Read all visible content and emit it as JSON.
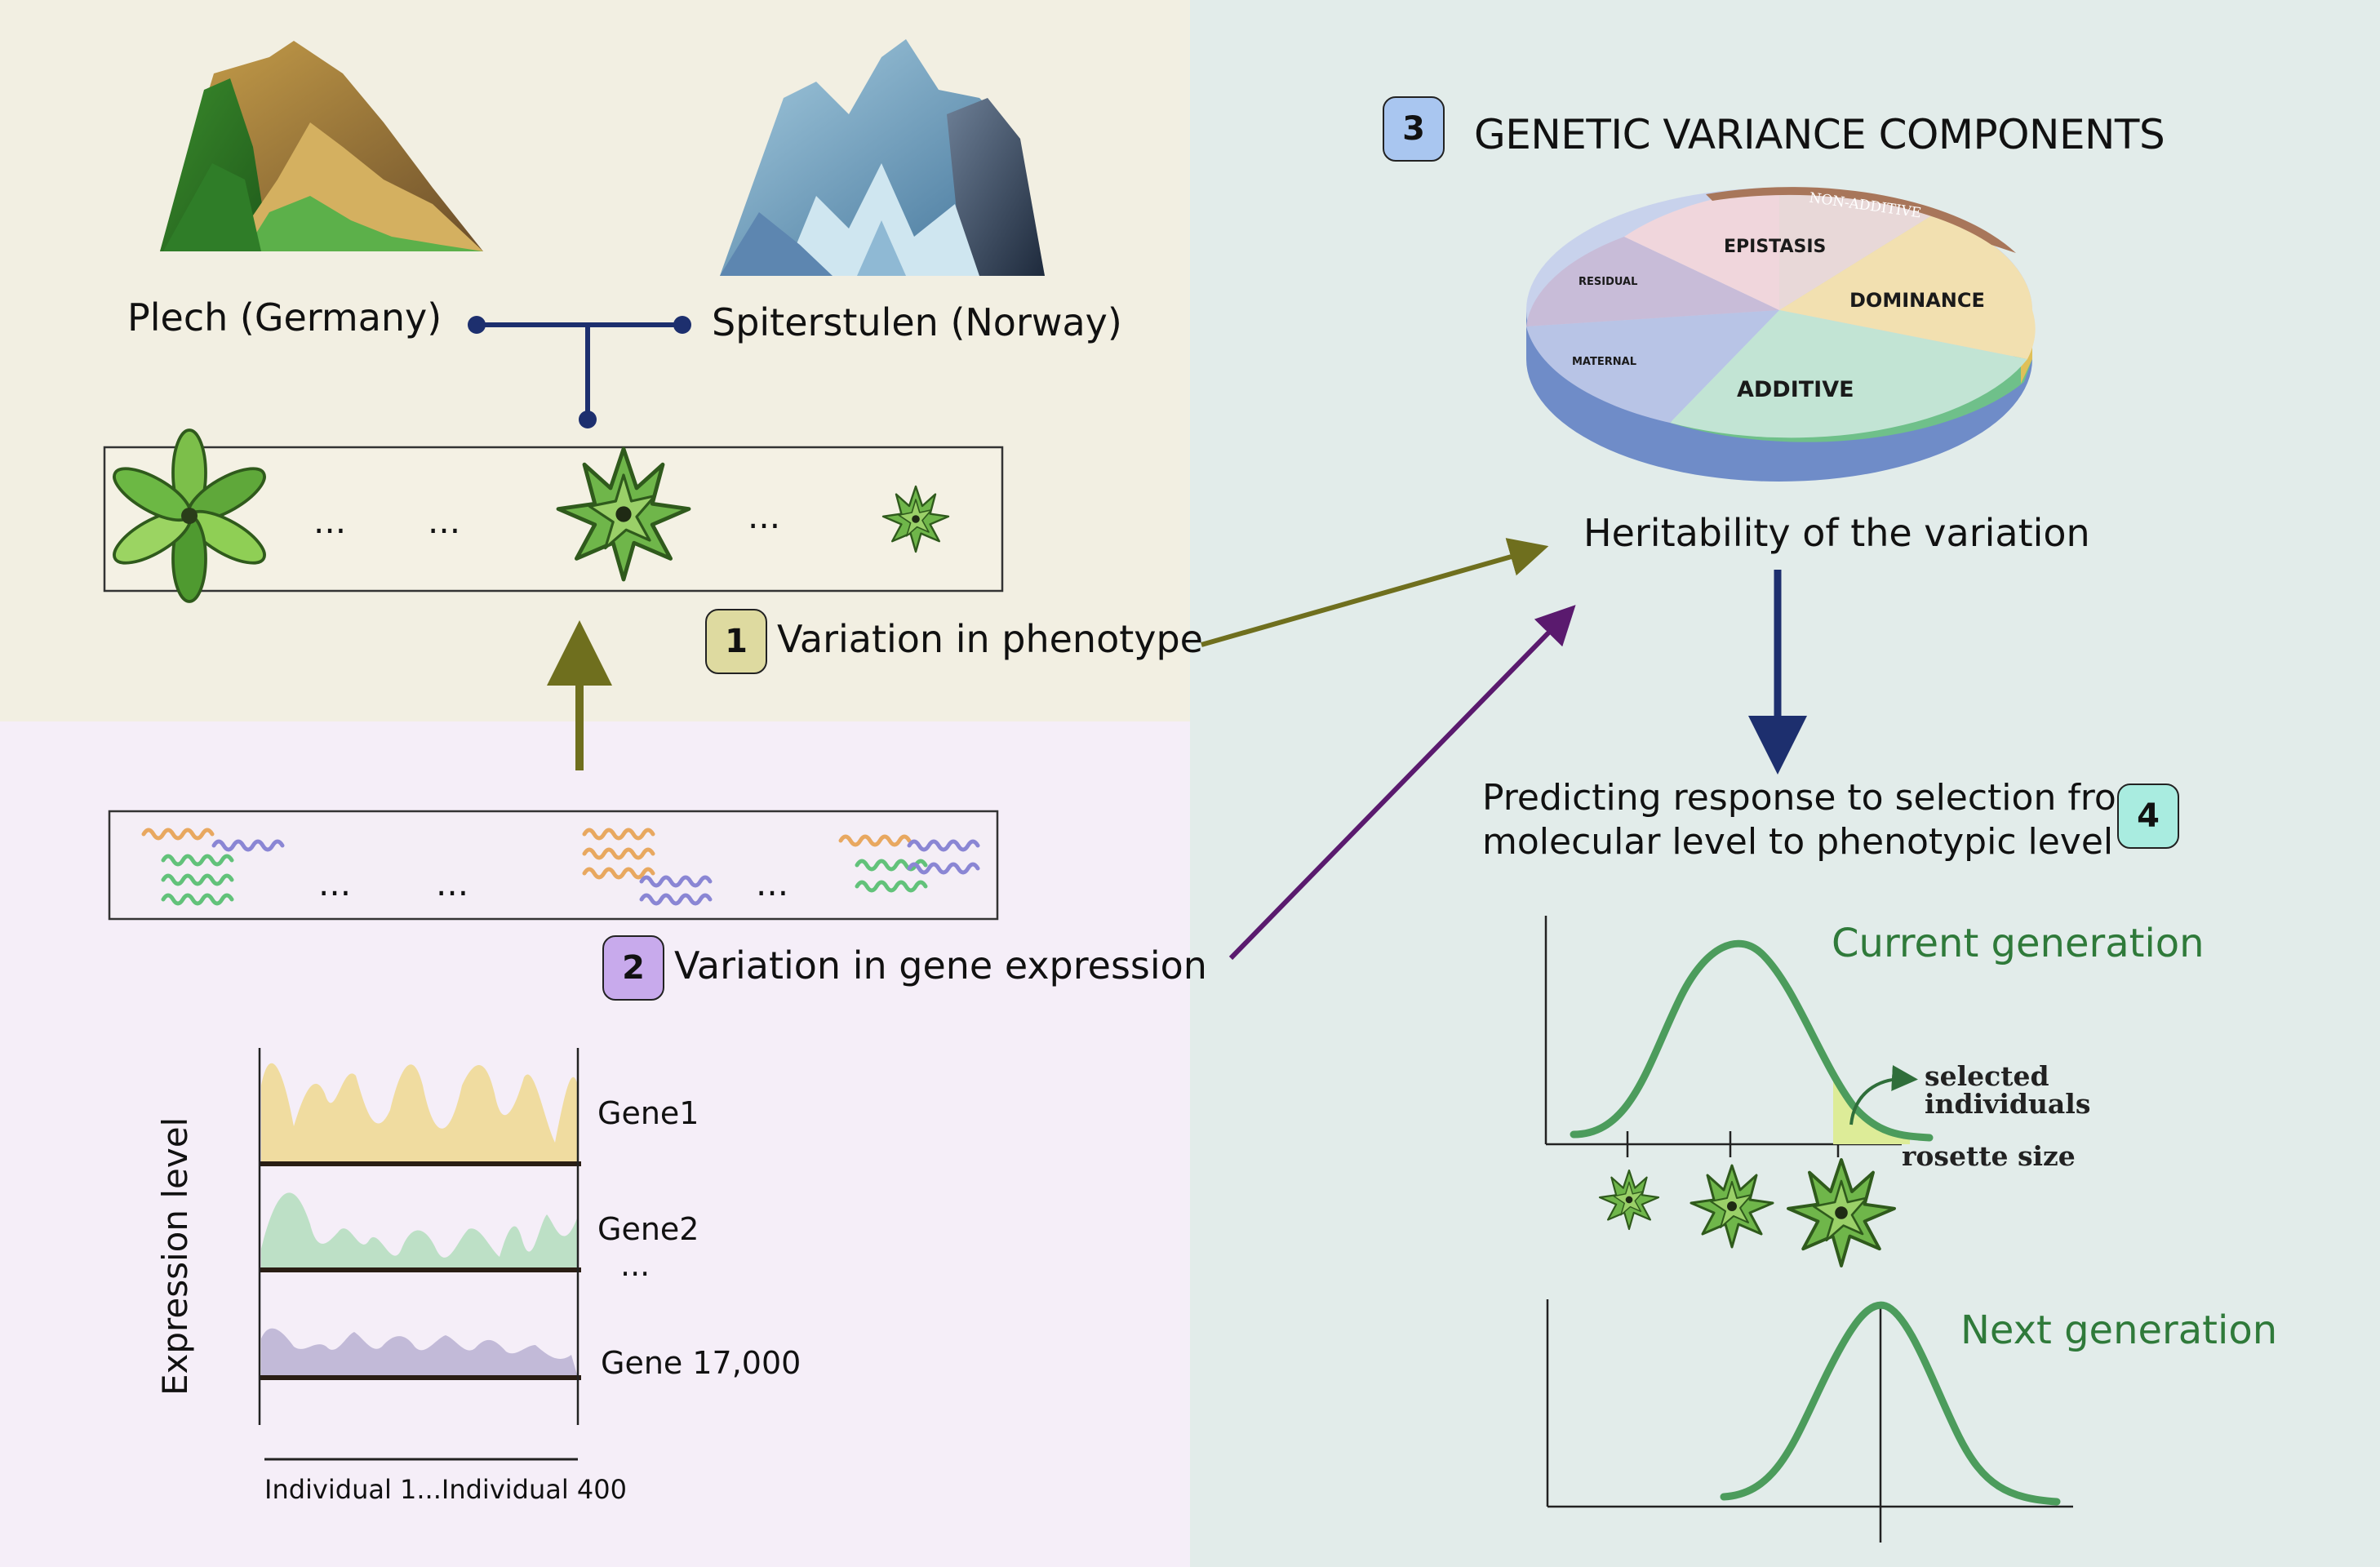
{
  "populations": {
    "left": "Plech (Germany)",
    "right": "Spiterstulen (Norway)"
  },
  "steps": {
    "s1": {
      "number": "1",
      "label": "Variation in phenotype"
    },
    "s2": {
      "number": "2",
      "label": "Variation in gene expression"
    },
    "s3": {
      "number": "3",
      "label": "GENETIC VARIANCE COMPONENTS"
    },
    "s4": {
      "number": "4",
      "label_line1": "Predicting response to selection from",
      "label_line2": "molecular level to phenotypic level"
    }
  },
  "ellipsis": "...",
  "pie": {
    "slices": [
      "NON-ADDITIVE",
      "EPISTASIS",
      "DOMINANCE",
      "RESIDUAL",
      "MATERNAL",
      "ADDITIVE"
    ]
  },
  "heritability": "Heritability of the variation",
  "expression": {
    "ylabel": "Expression level",
    "xlabel": "Individual 1...Individual 400",
    "genes": [
      "Gene1",
      "Gene2",
      "Gene 17,000"
    ],
    "gene_ellipsis": "..."
  },
  "selection": {
    "current_title": "Current generation",
    "next_title": "Next generation",
    "selected_line1": "selected",
    "selected_line2": "individuals",
    "x_axis": "rosette size"
  },
  "colors": {
    "step1_badge": "#dedaa0",
    "step2_badge": "#c8aaec",
    "step3_badge": "#a9c6f0",
    "step4_badge": "#a9ece0",
    "olive_arrow": "#6f6f1e",
    "purple_arrow": "#5a1a6e",
    "navy_arrow": "#1d2f6e",
    "curve_green": "#4c9c5c"
  }
}
